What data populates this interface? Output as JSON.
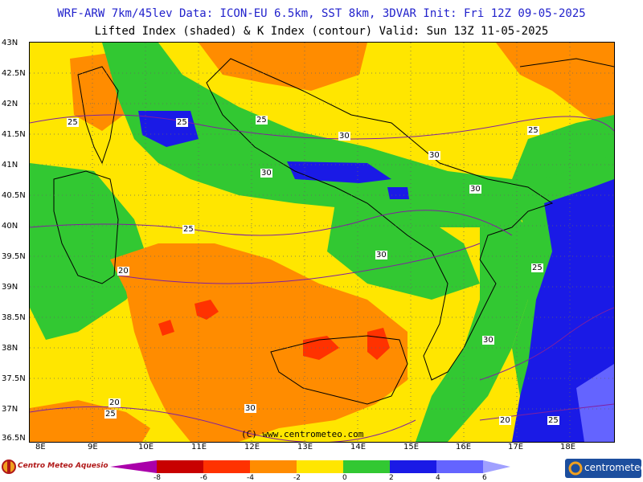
{
  "header": {
    "line1": "WRF-ARW 7km/45lev  Data: ICON-EU 6.5km, SST 8km, 3DVAR  Init: Fri 12Z 09-05-2025",
    "line2": "Lifted Index (shaded) & K Index (contour)  Valid: Sun 13Z 11-05-2025"
  },
  "axes": {
    "lat_labels": [
      "43N",
      "42.5N",
      "42N",
      "41.5N",
      "41N",
      "40.5N",
      "40N",
      "39.5N",
      "39N",
      "38.5N",
      "38N",
      "37.5N",
      "37N",
      "36.5N"
    ],
    "lon_labels": [
      "8E",
      "9E",
      "10E",
      "11E",
      "12E",
      "13E",
      "14E",
      "15E",
      "16E",
      "17E",
      "18E"
    ]
  },
  "map_credit": "(C) www.centrometeo.com",
  "contour_labels": [
    "25",
    "25",
    "25",
    "30",
    "30",
    "30",
    "25",
    "30",
    "25",
    "30",
    "25",
    "20",
    "30",
    "20",
    "25",
    "30",
    "20",
    "25"
  ],
  "colorbar": {
    "ticks": [
      "-8",
      "-6",
      "-4",
      "-2",
      "0",
      "2",
      "4",
      "6"
    ],
    "colors": [
      "#aa00aa",
      "#c80000",
      "#ff3200",
      "#ff8c00",
      "#ffe600",
      "#32c832",
      "#1a1ae6",
      "#6464ff",
      "#a0a0ff"
    ]
  },
  "logos": {
    "left": "Centro Meteo Aquesio",
    "right": "centrometeo"
  }
}
